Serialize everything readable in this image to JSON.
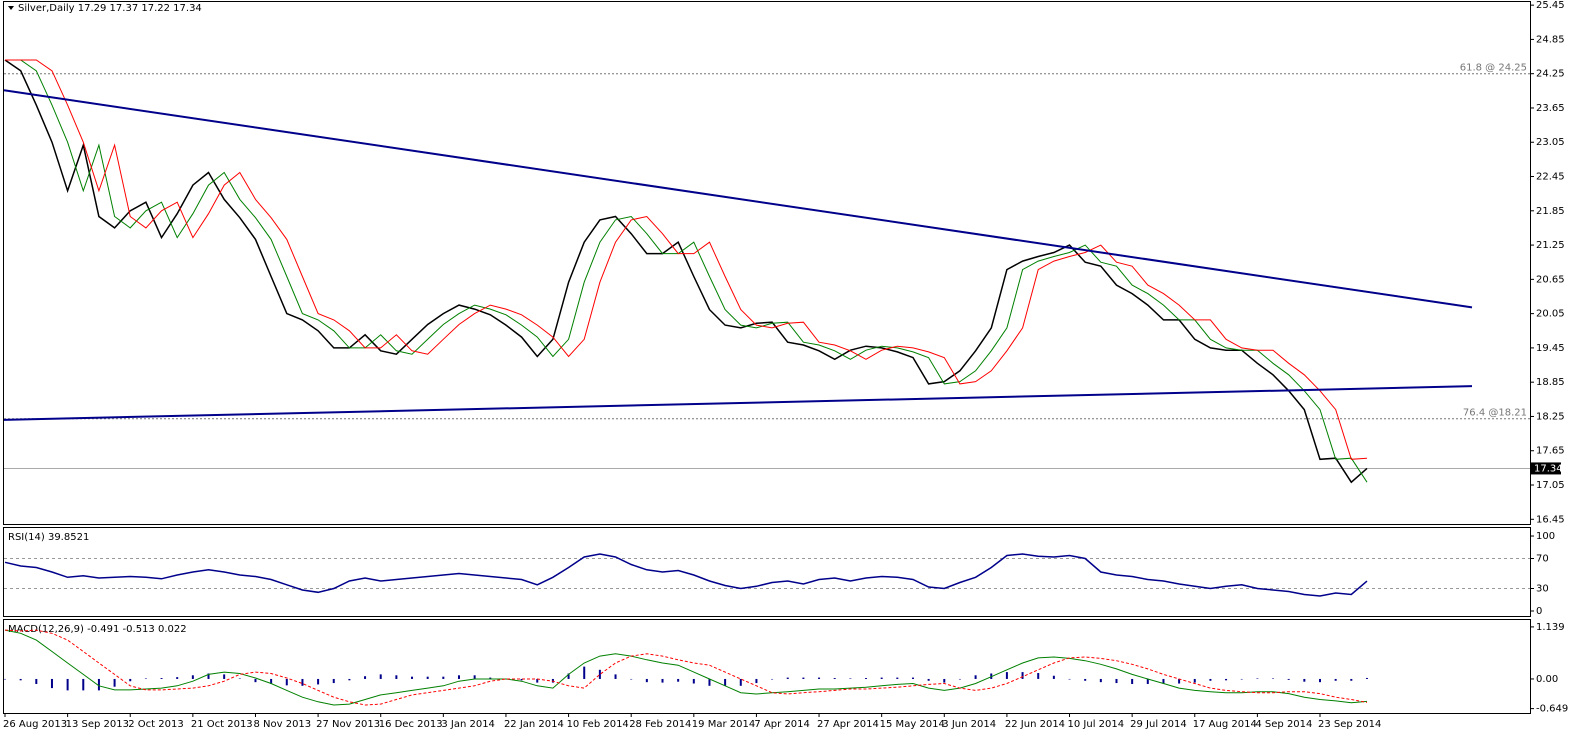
{
  "chart_data": [
    {
      "type": "line",
      "title": "Silver,Daily  17.29 17.37 17.22 17.34",
      "categories": [
        "26 Aug 2013",
        null,
        null,
        null,
        "13 Sep 2013",
        null,
        null,
        null,
        "2 Oct 2013",
        null,
        null,
        null,
        "21 Oct 2013",
        null,
        null,
        null,
        "8 Nov 2013",
        null,
        null,
        null,
        "27 Nov 2013",
        null,
        null,
        null,
        "16 Dec 2013",
        null,
        null,
        null,
        "3 Jan 2014",
        null,
        null,
        null,
        "22 Jan 2014",
        null,
        null,
        null,
        "10 Feb 2014",
        null,
        null,
        null,
        "28 Feb 2014",
        null,
        null,
        null,
        "19 Mar 2014",
        null,
        null,
        null,
        "7 Apr 2014",
        null,
        null,
        null,
        "27 Apr 2014",
        null,
        null,
        null,
        "15 May 2014",
        null,
        null,
        null,
        "3 Jun 2014",
        null,
        null,
        null,
        "22 Jun 2014",
        null,
        null,
        null,
        "10 Jul 2014",
        null,
        null,
        null,
        "29 Jul 2014",
        null,
        null,
        null,
        "17 Aug 2014",
        null,
        null,
        null,
        "4 Sep 2014",
        null,
        null,
        null,
        "23 Sep 2014",
        null,
        null,
        null
      ],
      "series": [
        {
          "color": "#000000",
          "values": [
            24.49,
            24.3,
            23.7,
            23.05,
            22.2,
            23.0,
            21.75,
            21.55,
            21.85,
            22.0,
            21.38,
            21.8,
            22.3,
            22.52,
            22.05,
            21.73,
            21.35,
            20.7,
            20.05,
            19.94,
            19.75,
            19.45,
            19.45,
            19.68,
            19.4,
            19.34,
            19.6,
            19.86,
            20.05,
            20.2,
            20.13,
            20.03,
            19.85,
            19.64,
            19.3,
            19.6,
            20.6,
            21.3,
            21.69,
            21.75,
            21.45,
            21.1,
            21.1,
            21.3,
            20.7,
            20.12,
            19.85,
            19.8,
            19.88,
            19.9,
            19.55,
            19.5,
            19.4,
            19.25,
            19.41,
            19.48,
            19.45,
            19.38,
            19.28,
            18.82,
            18.86,
            19.05,
            19.4,
            19.8,
            20.82,
            20.97,
            21.05,
            21.12,
            21.25,
            20.95,
            20.88,
            20.55,
            20.4,
            20.2,
            19.94,
            19.94,
            19.6,
            19.45,
            19.41,
            19.41,
            19.18,
            18.98,
            18.7,
            18.37,
            17.5,
            17.52,
            17.1,
            17.34
          ]
        },
        {
          "color": "#008000",
          "values": [
            24.49,
            24.49,
            24.3,
            23.7,
            23.05,
            22.2,
            23.0,
            21.75,
            21.55,
            21.85,
            22.0,
            21.38,
            21.8,
            22.3,
            22.52,
            22.05,
            21.73,
            21.35,
            20.7,
            20.05,
            19.94,
            19.75,
            19.45,
            19.45,
            19.68,
            19.4,
            19.34,
            19.6,
            19.86,
            20.05,
            20.2,
            20.13,
            20.03,
            19.85,
            19.64,
            19.3,
            19.6,
            20.6,
            21.3,
            21.69,
            21.75,
            21.45,
            21.1,
            21.1,
            21.3,
            20.7,
            20.12,
            19.85,
            19.8,
            19.88,
            19.9,
            19.55,
            19.5,
            19.4,
            19.25,
            19.41,
            19.48,
            19.45,
            19.38,
            19.28,
            18.82,
            18.86,
            19.05,
            19.4,
            19.8,
            20.82,
            20.97,
            21.05,
            21.12,
            21.25,
            20.95,
            20.88,
            20.55,
            20.4,
            20.2,
            19.94,
            19.94,
            19.6,
            19.45,
            19.41,
            19.41,
            19.18,
            18.98,
            18.7,
            18.37,
            17.5,
            17.52,
            17.1
          ]
        },
        {
          "color": "#ff0000",
          "values": [
            24.49,
            24.49,
            24.49,
            24.3,
            23.7,
            23.05,
            22.2,
            23.0,
            21.75,
            21.55,
            21.85,
            22.0,
            21.38,
            21.8,
            22.3,
            22.52,
            22.05,
            21.73,
            21.35,
            20.7,
            20.05,
            19.94,
            19.75,
            19.45,
            19.45,
            19.68,
            19.4,
            19.34,
            19.6,
            19.86,
            20.05,
            20.2,
            20.13,
            20.03,
            19.85,
            19.64,
            19.3,
            19.6,
            20.6,
            21.3,
            21.69,
            21.75,
            21.45,
            21.1,
            21.1,
            21.3,
            20.7,
            20.12,
            19.85,
            19.8,
            19.88,
            19.9,
            19.55,
            19.5,
            19.4,
            19.25,
            19.41,
            19.48,
            19.45,
            19.38,
            19.28,
            18.82,
            18.86,
            19.05,
            19.4,
            19.8,
            20.82,
            20.97,
            21.05,
            21.12,
            21.25,
            20.95,
            20.88,
            20.55,
            20.4,
            20.2,
            19.94,
            19.94,
            19.6,
            19.45,
            19.41,
            19.41,
            19.18,
            18.98,
            18.7,
            18.37,
            17.5,
            17.52
          ]
        }
      ],
      "trendlines": [
        {
          "color": "#00008b",
          "values": [
            23.96,
            20.16
          ]
        },
        {
          "color": "#00008b",
          "values": [
            18.19,
            18.78
          ]
        }
      ],
      "annotations": [
        {
          "label": "61.8 @ 24.25",
          "value": 24.25
        },
        {
          "label": "76.4 @18.21",
          "value": 18.21
        }
      ],
      "current": 17.34,
      "ylim": [
        16.35,
        25.54
      ],
      "yticks": [
        25.45,
        24.85,
        24.25,
        23.65,
        23.05,
        22.45,
        21.85,
        21.25,
        20.65,
        20.05,
        19.45,
        18.85,
        18.25,
        17.65,
        17.05,
        16.45
      ]
    },
    {
      "type": "line",
      "title": "RSI(14) 39.8521",
      "series": [
        {
          "color": "#00008b",
          "values": [
            65,
            60,
            58,
            52,
            45,
            47,
            44,
            45,
            46,
            45,
            43,
            48,
            52,
            55,
            52,
            48,
            46,
            42,
            35,
            28,
            25,
            30,
            40,
            44,
            40,
            42,
            44,
            46,
            48,
            50,
            48,
            46,
            44,
            42,
            35,
            45,
            58,
            72,
            76,
            72,
            62,
            55,
            52,
            54,
            48,
            40,
            34,
            30,
            33,
            38,
            40,
            36,
            42,
            44,
            40,
            44,
            46,
            45,
            42,
            32,
            30,
            38,
            45,
            58,
            74,
            76,
            73,
            72,
            74,
            70,
            52,
            48,
            46,
            42,
            40,
            36,
            33,
            30,
            33,
            35,
            30,
            28,
            26,
            22,
            20,
            24,
            22,
            39.85
          ]
        }
      ],
      "levels": [
        70,
        30
      ],
      "ylim": [
        -8,
        110.7
      ],
      "yticks": [
        100,
        70,
        30,
        0
      ]
    },
    {
      "type": "macd",
      "title": "MACD(12,26,9) -0.491 -0.513 0.022",
      "series": [
        {
          "kind": "bar",
          "color": "#00008b",
          "values": [
            0,
            -0.03,
            -0.11,
            -0.2,
            -0.25,
            -0.25,
            -0.25,
            -0.17,
            -0.05,
            0.01,
            0.02,
            0.04,
            0.08,
            0.12,
            0.1,
            0.01,
            -0.07,
            -0.11,
            -0.14,
            -0.15,
            -0.12,
            -0.09,
            -0.03,
            0.06,
            0.1,
            0.08,
            0.05,
            0.05,
            0.05,
            0.08,
            0.08,
            0.03,
            0,
            -0.03,
            -0.08,
            -0.08,
            0.12,
            0.27,
            0.2,
            0.1,
            0,
            -0.07,
            -0.08,
            -0.06,
            -0.1,
            -0.15,
            -0.15,
            -0.15,
            -0.09,
            0,
            0.03,
            0.03,
            0.03,
            0.02,
            0.01,
            0.02,
            0.03,
            0.03,
            0.03,
            -0.04,
            -0.08,
            0,
            0.08,
            0.12,
            0.15,
            0.15,
            0.13,
            0.07,
            -0.01,
            -0.04,
            -0.07,
            -0.09,
            -0.11,
            -0.11,
            -0.1,
            -0.1,
            -0.08,
            -0.04,
            -0.03,
            -0.01,
            0.01,
            0.01,
            -0.02,
            -0.06,
            -0.07,
            -0.04,
            -0.04,
            0.022
          ]
        },
        {
          "kind": "line",
          "color": "#008000",
          "values": [
            1.07,
            1.0,
            0.85,
            0.6,
            0.35,
            0.1,
            -0.15,
            -0.24,
            -0.24,
            -0.22,
            -0.2,
            -0.15,
            -0.05,
            0.1,
            0.15,
            0.12,
            0.02,
            -0.1,
            -0.25,
            -0.4,
            -0.5,
            -0.57,
            -0.55,
            -0.45,
            -0.35,
            -0.3,
            -0.25,
            -0.2,
            -0.15,
            -0.05,
            0,
            0,
            0,
            -0.05,
            -0.15,
            -0.2,
            0.1,
            0.35,
            0.5,
            0.55,
            0.5,
            0.42,
            0.35,
            0.3,
            0.15,
            0,
            -0.15,
            -0.3,
            -0.33,
            -0.3,
            -0.28,
            -0.25,
            -0.22,
            -0.22,
            -0.2,
            -0.18,
            -0.15,
            -0.12,
            -0.1,
            -0.2,
            -0.25,
            -0.2,
            -0.1,
            0.05,
            0.2,
            0.35,
            0.46,
            0.48,
            0.45,
            0.4,
            0.32,
            0.22,
            0.1,
            0,
            -0.1,
            -0.2,
            -0.25,
            -0.28,
            -0.3,
            -0.3,
            -0.28,
            -0.28,
            -0.32,
            -0.4,
            -0.45,
            -0.48,
            -0.52,
            -0.491
          ]
        },
        {
          "kind": "line",
          "dashed": true,
          "color": "#ff0000",
          "values": [
            1.07,
            1.05,
            1.07,
            1.0,
            0.85,
            0.6,
            0.35,
            0.1,
            -0.15,
            -0.24,
            -0.24,
            -0.22,
            -0.2,
            -0.15,
            -0.05,
            0.1,
            0.15,
            0.12,
            0.02,
            -0.1,
            -0.25,
            -0.4,
            -0.5,
            -0.57,
            -0.55,
            -0.45,
            -0.35,
            -0.3,
            -0.25,
            -0.2,
            -0.15,
            -0.05,
            0,
            0,
            0,
            -0.05,
            -0.15,
            -0.2,
            0.1,
            0.35,
            0.5,
            0.55,
            0.5,
            0.42,
            0.35,
            0.3,
            0.15,
            0,
            -0.15,
            -0.3,
            -0.33,
            -0.3,
            -0.28,
            -0.25,
            -0.22,
            -0.22,
            -0.2,
            -0.18,
            -0.15,
            -0.12,
            -0.1,
            -0.2,
            -0.25,
            -0.2,
            -0.1,
            0.05,
            0.2,
            0.35,
            0.46,
            0.48,
            0.45,
            0.4,
            0.32,
            0.22,
            0.1,
            0,
            -0.1,
            -0.2,
            -0.25,
            -0.28,
            -0.3,
            -0.3,
            -0.28,
            -0.28,
            -0.32,
            -0.4,
            -0.45,
            -0.513
          ]
        }
      ],
      "ylim": [
        -0.745,
        1.29
      ],
      "yticks": [
        1.139,
        {
          "value": 0,
          "label": "0.00"
        },
        -0.649
      ]
    }
  ]
}
